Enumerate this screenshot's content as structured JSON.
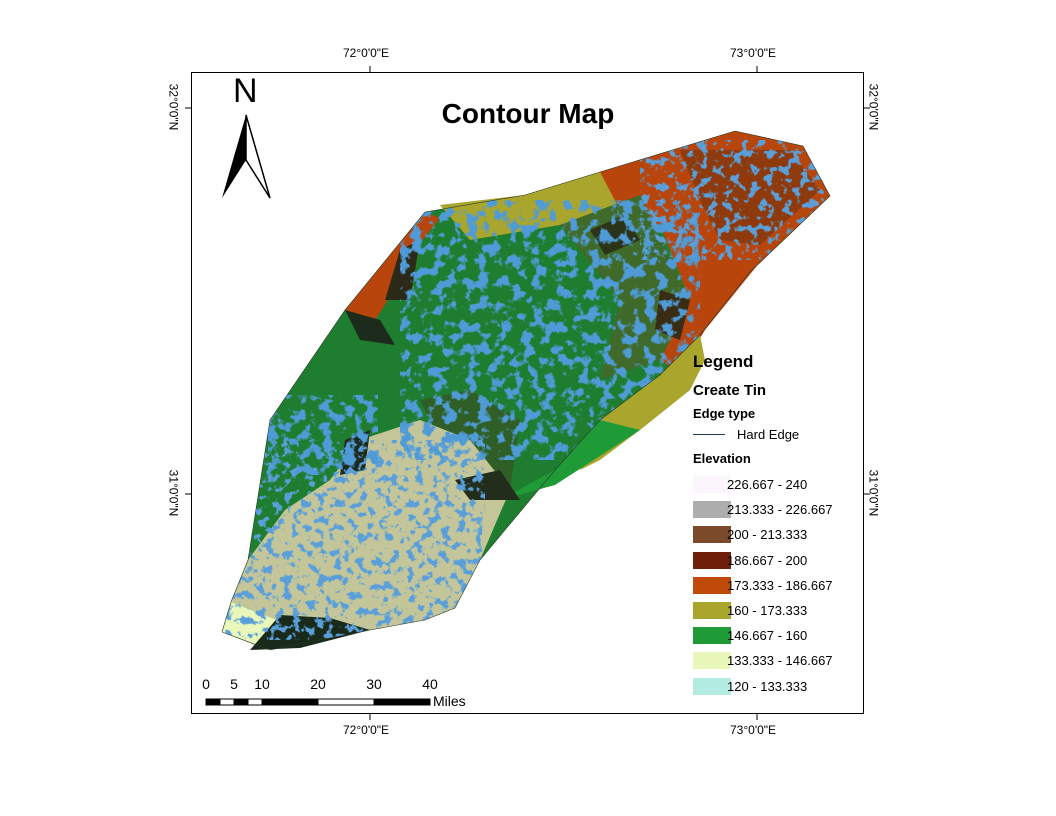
{
  "map": {
    "title": "Contour Map",
    "north_arrow": "N",
    "top_ticks": [
      "72°0'0\"E",
      "73°0'0\"E"
    ],
    "bottom_ticks": [
      "72°0'0\"E",
      "73°0'0\"E"
    ],
    "left_ticks": [
      "32°0'0\"N",
      "31°0'0\"N"
    ],
    "right_ticks": [
      "32°0'0\"N",
      "31°0'0\"N"
    ]
  },
  "legend": {
    "title": "Legend",
    "layer_name": "Create Tin",
    "edge_type_heading": "Edge type",
    "edge_entry": "Hard Edge",
    "elevation_heading": "Elevation",
    "elevation_classes": [
      {
        "label": "226.667 - 240",
        "color": "#fbf6fb"
      },
      {
        "label": "213.333 - 226.667",
        "color": "#aeaeae"
      },
      {
        "label": "200 - 213.333",
        "color": "#7a4a2b"
      },
      {
        "label": "186.667 - 200",
        "color": "#6e1e09"
      },
      {
        "label": "173.333 - 186.667",
        "color": "#c04a0a"
      },
      {
        "label": "160 - 173.333",
        "color": "#a9a52d"
      },
      {
        "label": "146.667 - 160",
        "color": "#1e9a36"
      },
      {
        "label": "133.333 - 146.667",
        "color": "#eaf7bb"
      },
      {
        "label": "120 - 133.333",
        "color": "#b2ece3"
      }
    ]
  },
  "scale_bar": {
    "labels": [
      "0",
      "5",
      "10",
      "20",
      "30",
      "40"
    ],
    "unit": "Miles"
  }
}
